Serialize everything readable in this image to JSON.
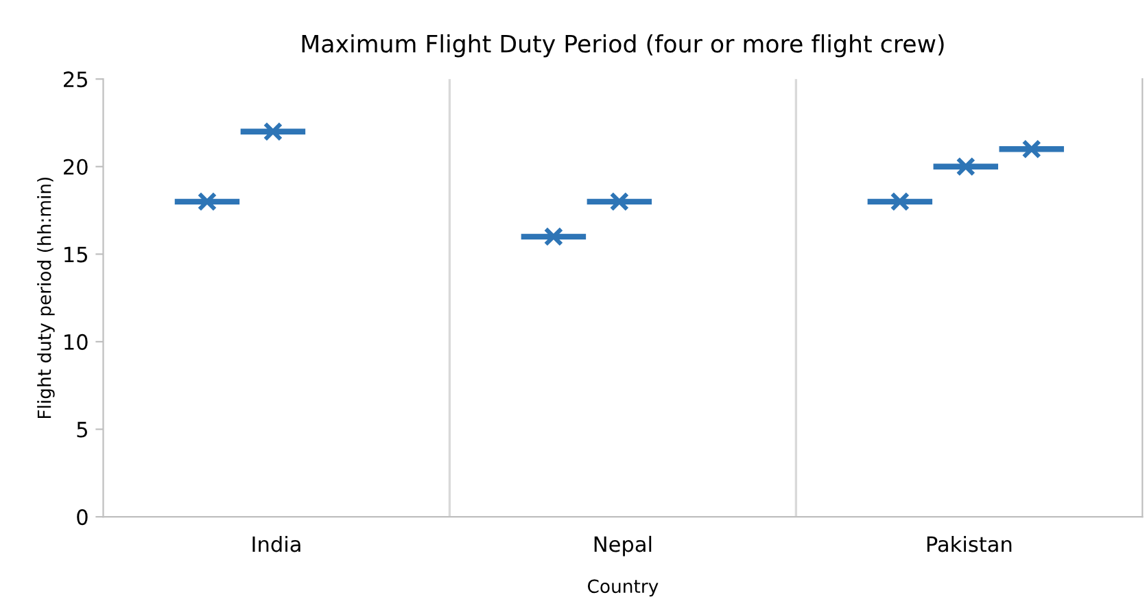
{
  "chart_data": {
    "type": "scatter",
    "title": "Maximum Flight Duty Period (four or more flight crew)",
    "xlabel": "Country",
    "ylabel": "Flight duty period (hh:min)",
    "categories": [
      "India",
      "Nepal",
      "Pakistan"
    ],
    "series": [
      {
        "color": "#2e75b6",
        "values": [
          18,
          16,
          18
        ]
      },
      {
        "color": "#2e75b6",
        "values": [
          22,
          18,
          20
        ]
      },
      {
        "color": "#2e75b6",
        "values": [
          null,
          null,
          21
        ]
      }
    ],
    "ylim": [
      0,
      25
    ],
    "yticks": [
      0,
      5,
      10,
      15,
      20,
      25
    ],
    "marker": "cross",
    "grid": false,
    "legend": false
  }
}
